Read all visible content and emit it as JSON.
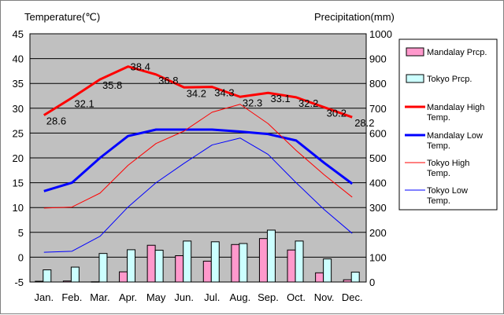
{
  "chart_data": {
    "type": "bar+line",
    "left_axis_title": "Temperature(℃)",
    "right_axis_title": "Precipitation(mm)",
    "categories": [
      "Jan.",
      "Feb.",
      "Mar.",
      "Apr.",
      "May",
      "Jun.",
      "Jul.",
      "Aug.",
      "Sep.",
      "Oct.",
      "Nov.",
      "Dec."
    ],
    "y_left": {
      "min": -5,
      "max": 45,
      "step": 5
    },
    "y_right": {
      "min": 0,
      "max": 1000,
      "step": 100
    },
    "grid": true,
    "legend_position": "right",
    "bar_series": [
      {
        "name": "Mandalay Prcp.",
        "color": "#ff99cc",
        "values": [
          3,
          4,
          1,
          41,
          148,
          106,
          84,
          151,
          175,
          129,
          37,
          9
        ]
      },
      {
        "name": "Tokyo Prcp.",
        "color": "#ccffff",
        "values": [
          49,
          60,
          115,
          130,
          128,
          165,
          162,
          155,
          209,
          165,
          93,
          40
        ]
      }
    ],
    "line_series": [
      {
        "name": "Mandalay High Temp.",
        "color": "#ff0000",
        "width": 3,
        "values": [
          28.6,
          32.1,
          35.8,
          38.4,
          36.8,
          34.2,
          34.3,
          32.3,
          33.1,
          32.2,
          30.2,
          28.2
        ]
      },
      {
        "name": "Mandalay Low Temp.",
        "color": "#0000ff",
        "width": 3,
        "values": [
          13.3,
          15.0,
          20.0,
          24.4,
          25.7,
          25.7,
          25.7,
          25.3,
          24.8,
          23.5,
          19.0,
          14.8
        ]
      },
      {
        "name": "Tokyo High Temp.",
        "color": "#ff0000",
        "width": 1,
        "values": [
          9.9,
          10.1,
          12.9,
          18.5,
          22.9,
          25.4,
          29.2,
          30.8,
          26.9,
          21.5,
          16.6,
          12.1
        ]
      },
      {
        "name": "Tokyo Low Temp.",
        "color": "#0000ff",
        "width": 1,
        "values": [
          1.0,
          1.2,
          4.2,
          10.1,
          15.0,
          18.9,
          22.6,
          24.0,
          20.7,
          15.0,
          9.6,
          4.8
        ]
      }
    ],
    "data_labels_series": "Mandalay High Temp.",
    "data_labels": [
      "28.6",
      "32.1",
      "35.8",
      "38.4",
      "36.8",
      "34.2",
      "34.3",
      "32.3",
      "33.1",
      "32.2",
      "30.2",
      "28.2"
    ],
    "legend_labels": [
      [
        "Mandalay Prcp."
      ],
      [
        "Tokyo Prcp."
      ],
      [
        "Mandalay High",
        "Temp."
      ],
      [
        "Mandalay Low",
        "Temp."
      ],
      [
        "Tokyo High",
        "Temp."
      ],
      [
        "Tokyo Low",
        "Temp."
      ]
    ]
  }
}
